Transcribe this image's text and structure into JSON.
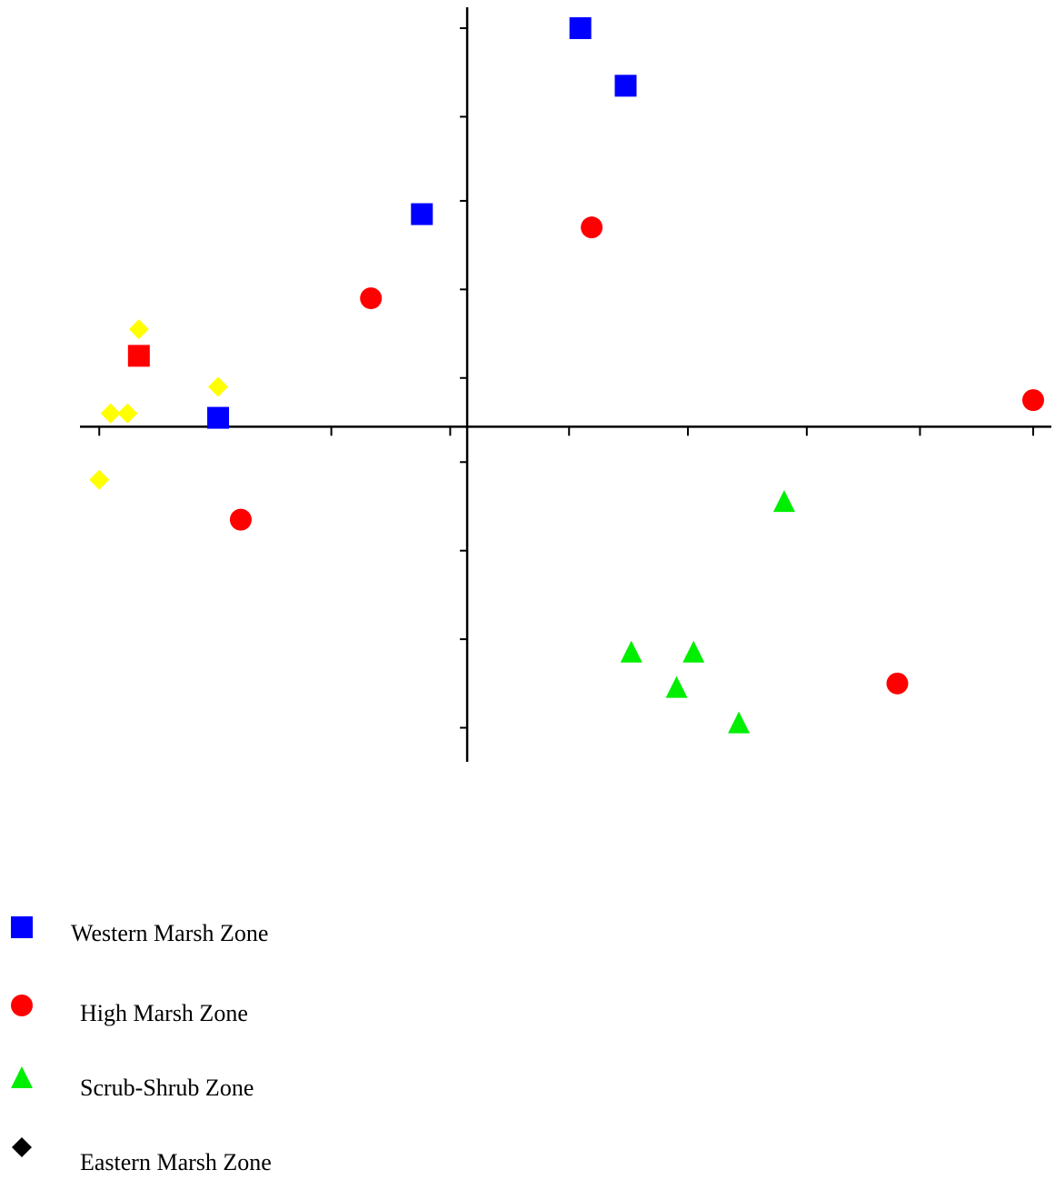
{
  "chart_data": {
    "type": "scatter",
    "title": "",
    "xlabel": "",
    "ylabel": "",
    "xlim": [
      -3.3,
      5.0
    ],
    "ylim": [
      -3.6,
      4.5
    ],
    "x_ticks": [
      -3.25,
      -1.2,
      -0.15,
      0.9,
      1.95,
      3.0,
      4.0,
      5.0
    ],
    "y_ticks": [
      -3.4,
      -2.4,
      -1.4,
      -0.4,
      0.55,
      1.55,
      2.55,
      3.5,
      4.5
    ],
    "grid": false,
    "legend_position": "bottom-left",
    "series": [
      {
        "name": "Western Marsh Zone",
        "marker": "square",
        "color": "#0000ff",
        "points": [
          {
            "x": 1.0,
            "y": 4.5
          },
          {
            "x": 1.4,
            "y": 3.85
          },
          {
            "x": -0.4,
            "y": 2.4
          },
          {
            "x": -2.2,
            "y": 0.1
          }
        ]
      },
      {
        "name": "High Marsh Zone",
        "marker": "circle",
        "color": "#ff0000",
        "points": [
          {
            "x": 1.1,
            "y": 2.25
          },
          {
            "x": -0.85,
            "y": 1.45
          },
          {
            "x": 5.0,
            "y": 0.3
          },
          {
            "x": -2.0,
            "y": -1.05
          },
          {
            "x": 3.8,
            "y": -2.9
          }
        ]
      },
      {
        "name": "",
        "marker": "square",
        "color": "#ff0000",
        "points": [
          {
            "x": -2.9,
            "y": 0.8
          }
        ]
      },
      {
        "name": "Scrub-Shrub Zone",
        "marker": "triangle",
        "color": "#00ee00",
        "points": [
          {
            "x": 2.8,
            "y": -0.85
          },
          {
            "x": 1.45,
            "y": -2.55
          },
          {
            "x": 2.0,
            "y": -2.55
          },
          {
            "x": 1.85,
            "y": -2.95
          },
          {
            "x": 2.4,
            "y": -3.35
          }
        ]
      },
      {
        "name": "Eastern Marsh Zone",
        "marker": "diamond",
        "color": "#ffff00",
        "legend_color": "#000000",
        "points": [
          {
            "x": -2.9,
            "y": 1.1
          },
          {
            "x": -2.2,
            "y": 0.45
          },
          {
            "x": -3.15,
            "y": 0.15
          },
          {
            "x": -3.0,
            "y": 0.15
          },
          {
            "x": -3.25,
            "y": -0.6
          }
        ]
      }
    ]
  },
  "legend": {
    "items": [
      {
        "label": "Western Marsh Zone",
        "marker": "square",
        "color": "#0000ff"
      },
      {
        "label": "High Marsh Zone",
        "marker": "circle",
        "color": "#ff0000"
      },
      {
        "label": "Scrub-Shrub Zone",
        "marker": "triangle",
        "color": "#00ee00"
      },
      {
        "label": "Eastern Marsh Zone",
        "marker": "diamond",
        "color": "#000000"
      }
    ]
  }
}
